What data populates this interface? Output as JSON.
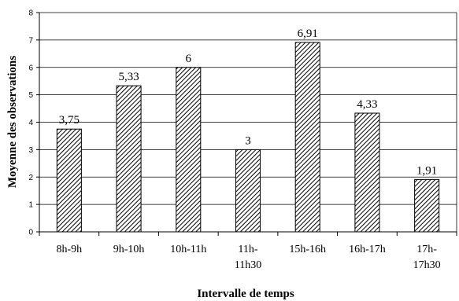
{
  "chart_data": {
    "type": "bar",
    "categories": [
      "8h-9h",
      "9h-10h",
      "10h-11h",
      "11h-11h30",
      "15h-16h",
      "16h-17h",
      "17h-17h30"
    ],
    "category_lines": [
      [
        "8h-9h"
      ],
      [
        "9h-10h"
      ],
      [
        "10h-11h"
      ],
      [
        "11h-",
        "11h30"
      ],
      [
        "15h-16h"
      ],
      [
        "16h-17h"
      ],
      [
        "17h-",
        "17h30"
      ]
    ],
    "values": [
      3.75,
      5.33,
      6,
      3,
      6.91,
      4.33,
      1.91
    ],
    "data_labels": [
      "3,75",
      "5,33",
      "6",
      "3",
      "6,91",
      "4,33",
      "1,91"
    ],
    "xlabel": "Intervalle de temps",
    "ylabel": "Moyenne des observations",
    "ylim": [
      0,
      8
    ],
    "yticks": [
      "0",
      "1",
      "2",
      "3",
      "4",
      "5",
      "6",
      "7",
      "8"
    ],
    "grid": true,
    "bar_fill": "diagonal-hatch",
    "colors": {
      "bar_fill": "#ffffff",
      "bar_hatch": "#000000",
      "bar_stroke": "#000000",
      "grid": "#000000"
    }
  }
}
